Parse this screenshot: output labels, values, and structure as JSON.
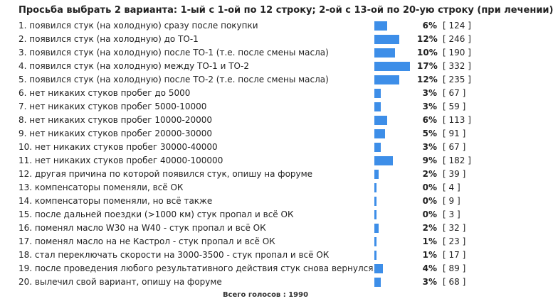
{
  "poll": {
    "title": "Просьба выбрать 2 варианта: 1-ый с 1-ой по 12 строку; 2-ой с 13-ой по 20-ую строку (при лечении)",
    "total_label": "Всего голосов : 1990",
    "bar_color": "#3d8ee8",
    "options": [
      {
        "label": "1. появился стук (на холодную) сразу после покупки",
        "percent": "6%",
        "votes": "[ 124 ]",
        "share": 6
      },
      {
        "label": "2. появился стук (на холодную) до ТО-1",
        "percent": "12%",
        "votes": "[ 246 ]",
        "share": 12
      },
      {
        "label": "3. появился стук (на холодную) после ТО-1 (т.е. после смены масла)",
        "percent": "10%",
        "votes": "[ 190 ]",
        "share": 10
      },
      {
        "label": "4. появился стук (на холодную) между ТО-1 и ТО-2",
        "percent": "17%",
        "votes": "[ 332 ]",
        "share": 17
      },
      {
        "label": "5. появился стук (на холодную) после ТО-2 (т.е. после смены масла)",
        "percent": "12%",
        "votes": "[ 235 ]",
        "share": 12
      },
      {
        "label": "6. нет никаких стуков пробег до 5000",
        "percent": "3%",
        "votes": "[ 67 ]",
        "share": 3
      },
      {
        "label": "7. нет никаких стуков пробег 5000-10000",
        "percent": "3%",
        "votes": "[ 59 ]",
        "share": 3
      },
      {
        "label": "8. нет никаких стуков пробег 10000-20000",
        "percent": "6%",
        "votes": "[ 113 ]",
        "share": 6
      },
      {
        "label": "9. нет никаких стуков пробег 20000-30000",
        "percent": "5%",
        "votes": "[ 91 ]",
        "share": 5
      },
      {
        "label": "10. нет никаких стуков пробег 30000-40000",
        "percent": "3%",
        "votes": "[ 67 ]",
        "share": 3
      },
      {
        "label": "11. нет никаких стуков пробег 40000-100000",
        "percent": "9%",
        "votes": "[ 182 ]",
        "share": 9
      },
      {
        "label": "12. другая причина по которой появился стук, опишу на форуме",
        "percent": "2%",
        "votes": "[ 39 ]",
        "share": 2
      },
      {
        "label": "13. компенсаторы поменяли, всё ОК",
        "percent": "0%",
        "votes": "[ 4 ]",
        "share": 0.2
      },
      {
        "label": "14. компенсаторы поменяли, но всё также",
        "percent": "0%",
        "votes": "[ 9 ]",
        "share": 0.45
      },
      {
        "label": "15. после дальней поездки (>1000 км) стук пропал и всё ОК",
        "percent": "0%",
        "votes": "[ 3 ]",
        "share": 0.15
      },
      {
        "label": "16. поменял масло W30 на W40 - стук пропал и всё ОК",
        "percent": "2%",
        "votes": "[ 32 ]",
        "share": 2
      },
      {
        "label": "17. поменял масло на не Кастрол - стук пропал и всё ОК",
        "percent": "1%",
        "votes": "[ 23 ]",
        "share": 1
      },
      {
        "label": "18. стал переключать скорости на 3000-3500 - стук пропал и всё ОК",
        "percent": "1%",
        "votes": "[ 17 ]",
        "share": 1
      },
      {
        "label": "19. после проведения любого результативного действия стук снова вернулся.",
        "percent": "4%",
        "votes": "[ 89 ]",
        "share": 4
      },
      {
        "label": "20. вылечил свой вариант, опишу на форуме",
        "percent": "3%",
        "votes": "[ 68 ]",
        "share": 3
      }
    ]
  }
}
